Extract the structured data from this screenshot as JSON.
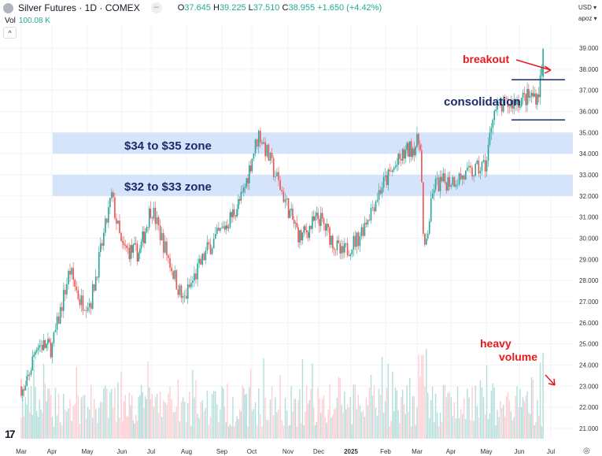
{
  "header": {
    "symbol": "Silver Futures · 1D · COMEX",
    "open_label": "O",
    "open": "37.645",
    "high_label": "H",
    "high": "39.225",
    "low_label": "L",
    "low": "37.510",
    "close_label": "C",
    "close": "38.955",
    "change": "+1.650 (+4.42%)",
    "vol_label": "Vol",
    "vol": "100.08 K",
    "currency": "USD ▾",
    "scale": "apoz ▾",
    "logo": "TV"
  },
  "colors": {
    "up": "#26a69a",
    "down": "#ef5350",
    "up_vol": "#b2dfdb",
    "down_vol": "#ffcdd2",
    "zone": "#d6e4fb",
    "annot_red": "#e8191c",
    "annot_navy": "#1a2a6c"
  },
  "chart_data": {
    "type": "candlestick",
    "title": "Silver Futures · 1D · COMEX",
    "ylim": [
      20.5,
      40
    ],
    "y_ticks": [
      "21.000",
      "22.000",
      "23.000",
      "24.000",
      "25.000",
      "26.000",
      "27.000",
      "28.000",
      "29.000",
      "30.000",
      "31.000",
      "32.000",
      "33.000",
      "34.000",
      "35.000",
      "36.000",
      "37.000",
      "38.000",
      "39.000"
    ],
    "x_ticks": [
      "Mar",
      "Apr",
      "May",
      "Jun",
      "Jul",
      "Aug",
      "Sep",
      "Oct",
      "Nov",
      "Dec",
      "2025",
      "Feb",
      "Mar",
      "Apr",
      "May",
      "Jun",
      "Jul"
    ],
    "price_path_approx": [
      [
        0,
        23
      ],
      [
        0.1,
        22.6
      ],
      [
        0.5,
        25
      ],
      [
        1,
        24.8
      ],
      [
        1.5,
        28.5
      ],
      [
        1.8,
        27
      ],
      [
        2.1,
        27
      ],
      [
        2.7,
        32
      ],
      [
        3,
        29.5
      ],
      [
        3.6,
        29.3
      ],
      [
        4,
        31.5
      ],
      [
        4.9,
        27
      ],
      [
        5.6,
        29.5
      ],
      [
        6.3,
        31
      ],
      [
        6.7,
        32
      ],
      [
        7.2,
        35
      ],
      [
        8.1,
        31
      ],
      [
        8.4,
        30
      ],
      [
        9,
        31
      ],
      [
        9.7,
        29.2
      ],
      [
        10.2,
        30
      ],
      [
        10.9,
        32.5
      ],
      [
        11.6,
        34
      ],
      [
        12.1,
        34.6
      ],
      [
        12.2,
        29
      ],
      [
        12.5,
        32.5
      ],
      [
        13.5,
        33
      ],
      [
        14,
        33.5
      ],
      [
        14.2,
        36
      ],
      [
        14.9,
        36.5
      ],
      [
        15.6,
        36.8
      ],
      [
        15.8,
        39
      ]
    ],
    "annotations": {
      "zone_upper": {
        "label": "$34 to $35 zone",
        "range": [
          34,
          35
        ]
      },
      "zone_lower": {
        "label": "$32 to $33 zone",
        "range": [
          32,
          33
        ]
      },
      "consolidation": {
        "label": "consolidation",
        "range": [
          35.6,
          37.5
        ]
      },
      "breakout": "breakout",
      "heavy_volume": "heavy volume"
    }
  }
}
